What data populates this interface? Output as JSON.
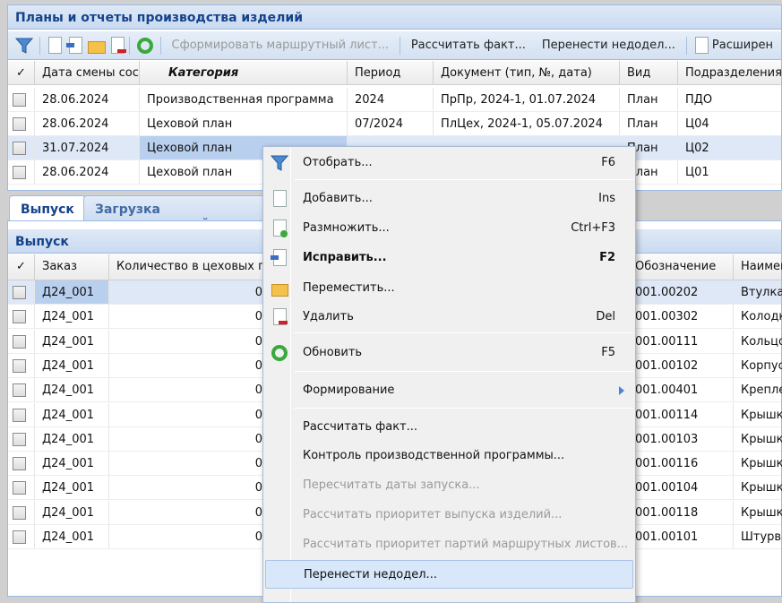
{
  "top_panel": {
    "title": "Планы и отчеты производства изделий",
    "toolbar": {
      "form_route": "Сформировать маршрутный лист...",
      "calc_fact": "Рассчитать факт...",
      "move_undone": "Перенести недодел...",
      "extended": "Расширен"
    },
    "columns": [
      "✓",
      "Дата смены сост",
      "Категория",
      "Период",
      "Документ (тип, №, дата)",
      "Вид",
      "Подразделения"
    ],
    "rows": [
      [
        "28.06.2024",
        "Производственная программа",
        "2024",
        "ПрПр, 2024-1, 01.07.2024",
        "План",
        "ПДО"
      ],
      [
        "28.06.2024",
        "Цеховой план",
        "07/2024",
        "ПлЦех, 2024-1, 05.07.2024",
        "План",
        "Ц04"
      ],
      [
        "31.07.2024",
        "Цеховой план",
        "",
        "",
        "План",
        "Ц02"
      ],
      [
        "28.06.2024",
        "Цеховой план",
        "",
        "",
        "План",
        "Ц01"
      ]
    ]
  },
  "tabs": [
    "Выпуск",
    "Загрузка подразделений"
  ],
  "bottom_panel": {
    "title": "Выпуск",
    "columns": [
      "✓",
      "Заказ",
      "Количество в цеховых п",
      "Обозначение",
      "Наимен"
    ],
    "rows": [
      [
        "Д24_001",
        "0",
        "001.00202",
        "Втулка"
      ],
      [
        "Д24_001",
        "0",
        "001.00302",
        "Колодк"
      ],
      [
        "Д24_001",
        "0",
        "001.00111",
        "Кольцо"
      ],
      [
        "Д24_001",
        "0",
        "001.00102",
        "Корпус"
      ],
      [
        "Д24_001",
        "0",
        "001.00401",
        "Крепле"
      ],
      [
        "Д24_001",
        "0",
        "001.00114",
        "Крышка"
      ],
      [
        "Д24_001",
        "0",
        "001.00103",
        "Крышка"
      ],
      [
        "Д24_001",
        "0",
        "001.00116",
        "Крышка"
      ],
      [
        "Д24_001",
        "0",
        "001.00104",
        "Крышка"
      ],
      [
        "Д24_001",
        "0",
        "001.00118",
        "Крышка"
      ],
      [
        "Д24_001",
        "0",
        "001.00101",
        "Штурва"
      ]
    ]
  },
  "context_menu": {
    "items": [
      {
        "label": "Отобрать...",
        "shortcut": "F6",
        "icon": "filter-icon"
      },
      {
        "label": "Добавить...",
        "shortcut": "Ins",
        "icon": "new-document-icon"
      },
      {
        "label": "Размножить...",
        "shortcut": "Ctrl+F3",
        "icon": "copy-document-icon"
      },
      {
        "label": "Исправить...",
        "shortcut": "F2",
        "icon": "edit-icon"
      },
      {
        "label": "Переместить...",
        "shortcut": "",
        "icon": "folder-icon"
      },
      {
        "label": "Удалить",
        "shortcut": "Del",
        "icon": "delete-icon"
      },
      {
        "label": "Обновить",
        "shortcut": "F5",
        "icon": "refresh-icon"
      },
      {
        "label": "Формирование",
        "shortcut": ""
      },
      {
        "label": "Рассчитать факт...",
        "shortcut": ""
      },
      {
        "label": "Контроль производственной программы...",
        "shortcut": ""
      },
      {
        "label": "Пересчитать даты запуска...",
        "shortcut": ""
      },
      {
        "label": "Рассчитать приоритет выпуска изделий...",
        "shortcut": ""
      },
      {
        "label": "Рассчитать приоритет партий маршрутных листов...",
        "shortcut": ""
      },
      {
        "label": "Перенести недодел...",
        "shortcut": ""
      }
    ]
  },
  "colors": {
    "header_text": "#15428b",
    "selection": "#dfe8f6",
    "highlight": "#d9e7fa"
  }
}
